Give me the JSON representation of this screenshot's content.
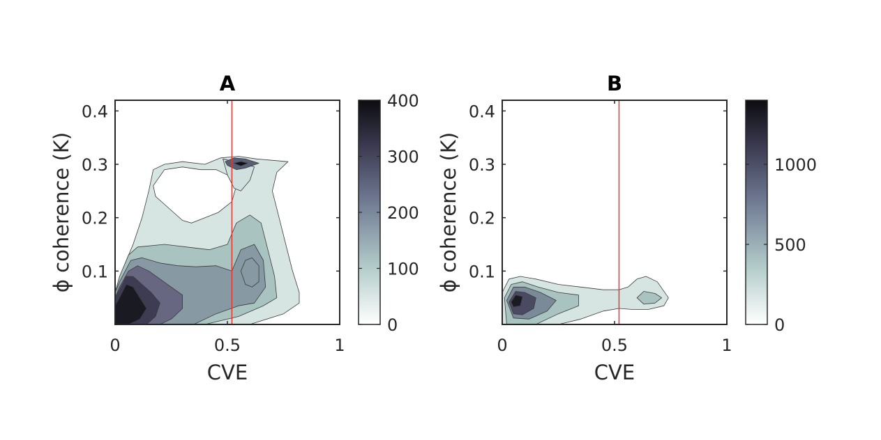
{
  "chart_data": [
    {
      "type": "contour",
      "title": "A",
      "xlabel": "CVE",
      "ylabel": "ϕ coherence (K)",
      "xlim": [
        0,
        1
      ],
      "ylim": [
        0,
        0.42
      ],
      "xticks": [
        0,
        0.5,
        1
      ],
      "xtick_labels": [
        "0",
        "0.5",
        "1"
      ],
      "yticks": [
        0.1,
        0.2,
        0.3,
        0.4
      ],
      "ytick_labels": [
        "0.1",
        "0.2",
        "0.3",
        "0.4"
      ],
      "colorbar": {
        "range": [
          0,
          400
        ],
        "ticks": [
          0,
          100,
          200,
          300,
          400
        ],
        "tick_labels": [
          "0",
          "100",
          "200",
          "300",
          "400"
        ]
      },
      "reference_line": {
        "x": 0.52,
        "color": "#e8352e"
      },
      "levels": [
        {
          "level": 30,
          "color": "#d6e4e2",
          "path": [
            [
              0.02,
              0.08
            ],
            [
              0.05,
              0.12
            ],
            [
              0.08,
              0.15
            ],
            [
              0.12,
              0.2
            ],
            [
              0.15,
              0.25
            ],
            [
              0.17,
              0.29
            ],
            [
              0.22,
              0.3
            ],
            [
              0.3,
              0.305
            ],
            [
              0.4,
              0.3
            ],
            [
              0.47,
              0.312
            ],
            [
              0.55,
              0.315
            ],
            [
              0.63,
              0.31
            ],
            [
              0.77,
              0.305
            ],
            [
              0.72,
              0.285
            ],
            [
              0.7,
              0.25
            ],
            [
              0.73,
              0.2
            ],
            [
              0.76,
              0.15
            ],
            [
              0.79,
              0.1
            ],
            [
              0.82,
              0.06
            ],
            [
              0.82,
              0.04
            ],
            [
              0.75,
              0.02
            ],
            [
              0.6,
              0.0
            ],
            [
              0.0,
              0.0
            ],
            [
              0.0,
              0.06
            ]
          ]
        },
        {
          "level": 75,
          "color": "#a9c3c0",
          "path": [
            [
              0.02,
              0.09
            ],
            [
              0.06,
              0.13
            ],
            [
              0.1,
              0.145
            ],
            [
              0.22,
              0.15
            ],
            [
              0.32,
              0.145
            ],
            [
              0.42,
              0.14
            ],
            [
              0.5,
              0.15
            ],
            [
              0.54,
              0.19
            ],
            [
              0.6,
              0.205
            ],
            [
              0.65,
              0.19
            ],
            [
              0.68,
              0.14
            ],
            [
              0.71,
              0.09
            ],
            [
              0.72,
              0.05
            ],
            [
              0.66,
              0.035
            ],
            [
              0.55,
              0.015
            ],
            [
              0.4,
              0.0
            ],
            [
              0.0,
              0.0
            ],
            [
              0.0,
              0.06
            ]
          ]
        },
        {
          "level": 120,
          "color": "#8799a2",
          "path": [
            [
              0.02,
              0.08
            ],
            [
              0.07,
              0.12
            ],
            [
              0.12,
              0.125
            ],
            [
              0.2,
              0.115
            ],
            [
              0.28,
              0.11
            ],
            [
              0.36,
              0.108
            ],
            [
              0.45,
              0.11
            ],
            [
              0.52,
              0.1
            ],
            [
              0.56,
              0.14
            ],
            [
              0.62,
              0.15
            ],
            [
              0.66,
              0.12
            ],
            [
              0.67,
              0.07
            ],
            [
              0.62,
              0.04
            ],
            [
              0.55,
              0.035
            ],
            [
              0.45,
              0.02
            ],
            [
              0.35,
              0.0
            ],
            [
              0.0,
              0.0
            ],
            [
              0.0,
              0.06
            ]
          ]
        },
        {
          "level": 180,
          "color": "#686782",
          "path": [
            [
              0.02,
              0.07
            ],
            [
              0.06,
              0.1
            ],
            [
              0.1,
              0.11
            ],
            [
              0.15,
              0.1
            ],
            [
              0.2,
              0.085
            ],
            [
              0.25,
              0.07
            ],
            [
              0.3,
              0.055
            ],
            [
              0.3,
              0.03
            ],
            [
              0.25,
              0.01
            ],
            [
              0.2,
              0.0
            ],
            [
              0.0,
              0.0
            ],
            [
              0.0,
              0.05
            ]
          ]
        },
        {
          "level": 260,
          "color": "#3d3c52",
          "path": [
            [
              0.02,
              0.065
            ],
            [
              0.05,
              0.09
            ],
            [
              0.08,
              0.09
            ],
            [
              0.12,
              0.075
            ],
            [
              0.16,
              0.06
            ],
            [
              0.2,
              0.04
            ],
            [
              0.18,
              0.015
            ],
            [
              0.14,
              0.0
            ],
            [
              0.0,
              0.0
            ],
            [
              0.0,
              0.05
            ]
          ]
        },
        {
          "level": 340,
          "color": "#1a1a22",
          "path": [
            [
              0.02,
              0.05
            ],
            [
              0.05,
              0.075
            ],
            [
              0.08,
              0.07
            ],
            [
              0.11,
              0.05
            ],
            [
              0.14,
              0.03
            ],
            [
              0.11,
              0.01
            ],
            [
              0.06,
              0.0
            ],
            [
              0.0,
              0.0
            ],
            [
              0.0,
              0.035
            ]
          ]
        },
        {
          "level": 60,
          "color": "#cfe0de",
          "path": [
            [
              0.48,
              0.31
            ],
            [
              0.53,
              0.305
            ],
            [
              0.58,
              0.3
            ],
            [
              0.62,
              0.295
            ],
            [
              0.6,
              0.27
            ],
            [
              0.56,
              0.25
            ],
            [
              0.53,
              0.255
            ],
            [
              0.5,
              0.28
            ]
          ]
        },
        {
          "level": 150,
          "color": "#5a5f78",
          "path": [
            [
              0.49,
              0.305
            ],
            [
              0.53,
              0.312
            ],
            [
              0.58,
              0.31
            ],
            [
              0.64,
              0.302
            ],
            [
              0.58,
              0.293
            ],
            [
              0.54,
              0.29
            ],
            [
              0.5,
              0.298
            ]
          ]
        },
        {
          "level": 380,
          "color": "#111115",
          "path": [
            [
              0.53,
              0.302
            ],
            [
              0.56,
              0.305
            ],
            [
              0.59,
              0.302
            ],
            [
              0.56,
              0.297
            ]
          ]
        },
        {
          "level": 160,
          "color": "#8799a2",
          "path": [
            [
              0.56,
              0.1
            ],
            [
              0.58,
              0.12
            ],
            [
              0.61,
              0.125
            ],
            [
              0.64,
              0.11
            ],
            [
              0.64,
              0.08
            ],
            [
              0.61,
              0.07
            ],
            [
              0.58,
              0.075
            ]
          ]
        }
      ],
      "holes": [
        [
          [
            0.17,
            0.26
          ],
          [
            0.22,
            0.29
          ],
          [
            0.3,
            0.295
          ],
          [
            0.38,
            0.29
          ],
          [
            0.45,
            0.29
          ],
          [
            0.5,
            0.28
          ],
          [
            0.54,
            0.26
          ],
          [
            0.52,
            0.23
          ],
          [
            0.46,
            0.21
          ],
          [
            0.4,
            0.2
          ],
          [
            0.34,
            0.19
          ],
          [
            0.3,
            0.195
          ],
          [
            0.26,
            0.21
          ],
          [
            0.22,
            0.225
          ],
          [
            0.18,
            0.24
          ]
        ]
      ]
    },
    {
      "type": "contour",
      "title": "B",
      "xlabel": "CVE",
      "ylabel": "ϕ coherence (K)",
      "xlim": [
        0,
        1
      ],
      "ylim": [
        0,
        0.42
      ],
      "xticks": [
        0,
        0.5,
        1
      ],
      "xtick_labels": [
        "0",
        "0.5",
        "1"
      ],
      "yticks": [
        0.1,
        0.2,
        0.3,
        0.4
      ],
      "ytick_labels": [
        "0.1",
        "0.2",
        "0.3",
        "0.4"
      ],
      "colorbar": {
        "range": [
          0,
          1400
        ],
        "ticks": [
          0,
          500,
          1000
        ],
        "tick_labels": [
          "0",
          "500",
          "1000"
        ]
      },
      "reference_line": {
        "x": 0.52,
        "color": "#e8352e"
      },
      "levels": [
        {
          "level": 100,
          "color": "#d6e4e2",
          "path": [
            [
              0.0,
              0.06
            ],
            [
              0.03,
              0.085
            ],
            [
              0.08,
              0.09
            ],
            [
              0.15,
              0.085
            ],
            [
              0.25,
              0.075
            ],
            [
              0.35,
              0.07
            ],
            [
              0.45,
              0.065
            ],
            [
              0.52,
              0.065
            ],
            [
              0.56,
              0.07
            ],
            [
              0.6,
              0.085
            ],
            [
              0.64,
              0.09
            ],
            [
              0.69,
              0.08
            ],
            [
              0.74,
              0.05
            ],
            [
              0.72,
              0.035
            ],
            [
              0.65,
              0.028
            ],
            [
              0.58,
              0.028
            ],
            [
              0.52,
              0.03
            ],
            [
              0.45,
              0.025
            ],
            [
              0.35,
              0.01
            ],
            [
              0.25,
              0.0
            ],
            [
              0.0,
              0.0
            ]
          ]
        },
        {
          "level": 300,
          "color": "#a9c3c0",
          "path": [
            [
              0.01,
              0.05
            ],
            [
              0.04,
              0.075
            ],
            [
              0.09,
              0.08
            ],
            [
              0.16,
              0.07
            ],
            [
              0.25,
              0.06
            ],
            [
              0.34,
              0.055
            ],
            [
              0.34,
              0.035
            ],
            [
              0.25,
              0.02
            ],
            [
              0.15,
              0.0
            ],
            [
              0.02,
              0.0
            ]
          ]
        },
        {
          "level": 300,
          "color": "#a9c3c0",
          "path": [
            [
              0.6,
              0.05
            ],
            [
              0.63,
              0.062
            ],
            [
              0.68,
              0.058
            ],
            [
              0.71,
              0.05
            ],
            [
              0.68,
              0.04
            ],
            [
              0.63,
              0.038
            ]
          ]
        },
        {
          "level": 550,
          "color": "#7b8a98",
          "path": [
            [
              0.02,
              0.045
            ],
            [
              0.05,
              0.07
            ],
            [
              0.1,
              0.07
            ],
            [
              0.17,
              0.06
            ],
            [
              0.24,
              0.045
            ],
            [
              0.2,
              0.025
            ],
            [
              0.12,
              0.01
            ],
            [
              0.05,
              0.012
            ]
          ]
        },
        {
          "level": 850,
          "color": "#4a4a63",
          "path": [
            [
              0.03,
              0.042
            ],
            [
              0.06,
              0.062
            ],
            [
              0.1,
              0.06
            ],
            [
              0.15,
              0.05
            ],
            [
              0.14,
              0.03
            ],
            [
              0.09,
              0.018
            ],
            [
              0.05,
              0.02
            ]
          ]
        },
        {
          "level": 1200,
          "color": "#1a1a22",
          "path": [
            [
              0.04,
              0.042
            ],
            [
              0.06,
              0.055
            ],
            [
              0.09,
              0.052
            ],
            [
              0.08,
              0.035
            ],
            [
              0.05,
              0.033
            ]
          ]
        }
      ],
      "holes": []
    }
  ]
}
